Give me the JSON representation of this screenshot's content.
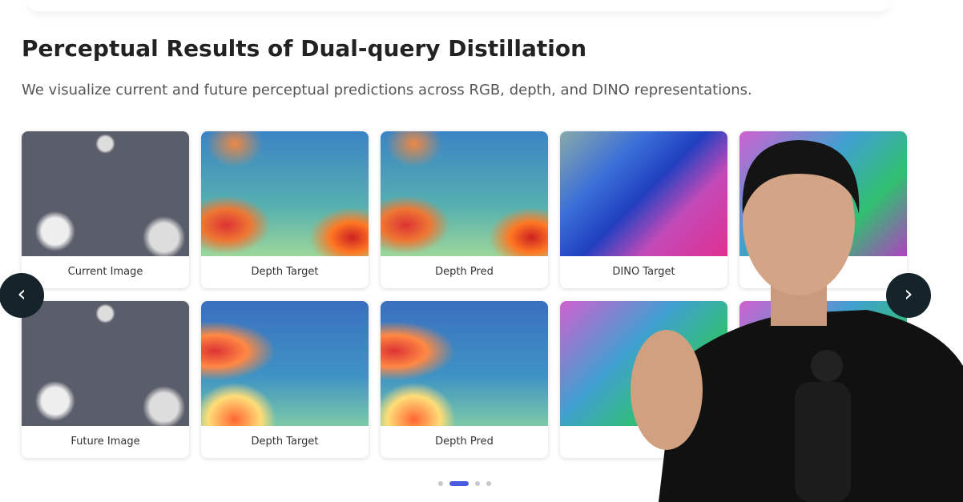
{
  "header": {
    "title": "Perceptual Results of Dual-query Distillation",
    "subtitle": "We visualize current and future perceptual predictions across RGB, depth, and DINO representations."
  },
  "carousel": {
    "prev": "‹",
    "next": "›",
    "rows": [
      [
        "Current Image",
        "Depth Target",
        "Depth Pred",
        "DINO Target"
      ],
      [
        "Future Image",
        "Depth Target",
        "Depth Pred"
      ]
    ]
  }
}
